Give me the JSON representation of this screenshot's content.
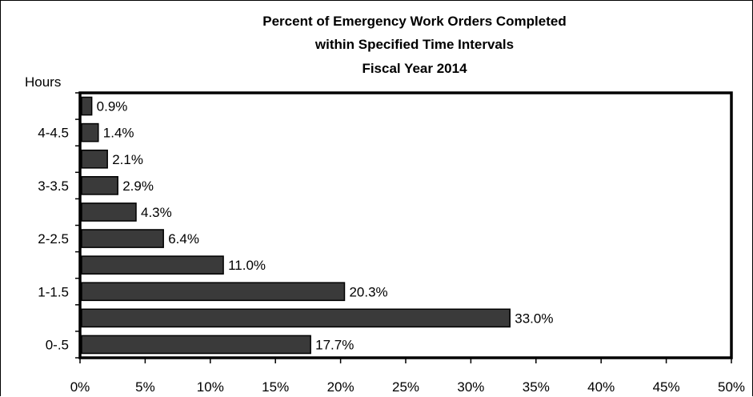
{
  "chart_data": {
    "type": "bar",
    "orientation": "horizontal",
    "title_lines": [
      "Percent of Emergency Work Orders Completed",
      "within Specified Time Intervals",
      "Fiscal Year 2014"
    ],
    "ylabel": "Hours",
    "xlabel": "",
    "y_tick_labels": [
      "4-4.5",
      "3-3.5",
      "2-2.5",
      "1-1.5",
      "0-.5"
    ],
    "categories_top_to_bottom": [
      "",
      "4-4.5",
      "",
      "3-3.5",
      "",
      "2-2.5",
      "",
      "1-1.5",
      "",
      "0-.5"
    ],
    "values": [
      0.9,
      1.4,
      2.1,
      2.9,
      4.3,
      6.4,
      11.0,
      20.3,
      33.0,
      17.7
    ],
    "data_labels": [
      "0.9%",
      "1.4%",
      "2.1%",
      "2.9%",
      "4.3%",
      "6.4%",
      "11.0%",
      "20.3%",
      "33.0%",
      "17.7%"
    ],
    "x_ticks": [
      0,
      5,
      10,
      15,
      20,
      25,
      30,
      35,
      40,
      45,
      50
    ],
    "x_tick_labels": [
      "0%",
      "5%",
      "10%",
      "15%",
      "20%",
      "25%",
      "30%",
      "35%",
      "40%",
      "45%",
      "50%"
    ],
    "xlim": [
      0,
      50
    ],
    "grid": false,
    "bar_color": "#3a3a3a",
    "bar_edge_color": "#000000"
  }
}
